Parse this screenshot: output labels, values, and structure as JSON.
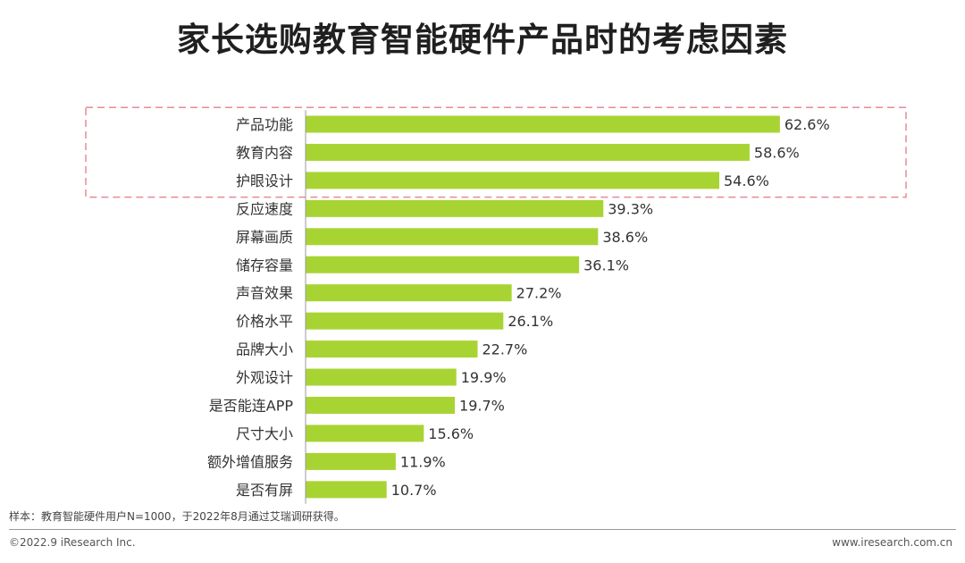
{
  "title": "家长选购教育智能硬件产品时的考虑因素",
  "note": "样本：教育智能硬件用户N=1000，于2022年8月通过艾瑞调研获得。",
  "footer": {
    "copyright": "©2022.9 iResearch Inc.",
    "website": "www.iresearch.com.cn"
  },
  "colors": {
    "bar": "#a8d433",
    "highlight_box": "#e88a95",
    "axis": "#999999"
  },
  "chart_data": {
    "type": "bar",
    "orientation": "horizontal",
    "categories": [
      "产品功能",
      "教育内容",
      "护眼设计",
      "反应速度",
      "屏幕画质",
      "储存容量",
      "声音效果",
      "价格水平",
      "品牌大小",
      "外观设计",
      "是否能连APP",
      "尺寸大小",
      "额外增值服务",
      "是否有屏"
    ],
    "values": [
      62.6,
      58.6,
      54.6,
      39.3,
      38.6,
      36.1,
      27.2,
      26.1,
      22.7,
      19.9,
      19.7,
      15.6,
      11.9,
      10.7
    ],
    "data_labels": [
      "62.6%",
      "58.6%",
      "54.6%",
      "39.3%",
      "38.6%",
      "36.1%",
      "27.2%",
      "26.1%",
      "22.7%",
      "19.9%",
      "19.7%",
      "15.6%",
      "11.9%",
      "10.7%"
    ],
    "value_unit": "%",
    "xlim": [
      0,
      100
    ],
    "grid": false,
    "legend": "none",
    "highlighted_categories": [
      "产品功能",
      "教育内容",
      "护眼设计"
    ]
  }
}
